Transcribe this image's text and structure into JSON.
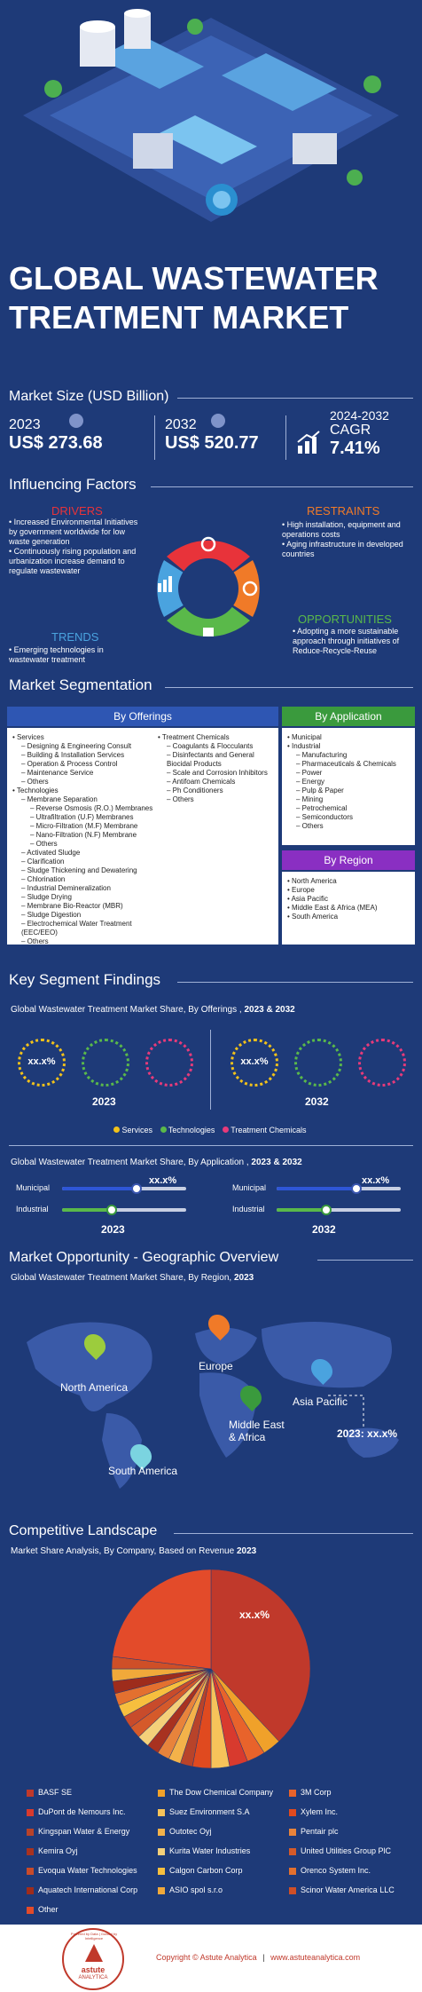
{
  "header": {
    "title_line1": "GLOBAL WASTEWATER",
    "title_line2": "TREATMENT MARKET"
  },
  "market_size": {
    "label": "Market Size (USD Billion)",
    "y1_year": "2023",
    "y1_value": "US$ 273.68",
    "y2_year": "2032",
    "y2_value": "US$ 520.77",
    "cagr_period": "2024-2032",
    "cagr_label": "CAGR",
    "cagr_value": "7.41%"
  },
  "factors": {
    "title": "Influencing Factors",
    "drivers_title": "DRIVERS",
    "drivers": [
      "Increased Environmental Initiatives by government worldwide for low waste generation",
      "Continuously rising population and urbanization increase demand to regulate wastewater"
    ],
    "restraints_title": "RESTRAINTS",
    "restraints": [
      "High installation, equipment and operations costs",
      "Aging infrastructure in developed countries"
    ],
    "trends_title": "TRENDS",
    "trends": [
      "Emerging technologies in wastewater treatment"
    ],
    "opportunities_title": "OPPORTUNITIES",
    "opportunities": [
      "Adopting a more sustainable approach through initiatives of Reduce-Recycle-Reuse"
    ],
    "colors": {
      "drivers": "#e8333a",
      "restraints": "#f07a28",
      "trends": "#4aa3df",
      "opportunities": "#5ab94a"
    }
  },
  "segmentation": {
    "title": "Market Segmentation",
    "offerings_title": "By Offerings",
    "application_title": "By Application",
    "region_title": "By Region",
    "offerings_col1": [
      {
        "t": "Services",
        "l": 0
      },
      {
        "t": "Designing & Engineering Consult",
        "l": 1
      },
      {
        "t": "Building & Installation Services",
        "l": 1
      },
      {
        "t": "Operation & Process Control",
        "l": 1
      },
      {
        "t": "Maintenance Service",
        "l": 1
      },
      {
        "t": "Others",
        "l": 1
      },
      {
        "t": "Technologies",
        "l": 0
      },
      {
        "t": "Membrane Separation",
        "l": 1
      },
      {
        "t": "Reverse Osmosis (R.O.) Membranes",
        "l": 2
      },
      {
        "t": "Ultrafiltration (U.F) Membranes",
        "l": 2
      },
      {
        "t": "Micro-Filtration (M.F) Membrane",
        "l": 2
      },
      {
        "t": "Nano-Filtration (N.F) Membrane",
        "l": 2
      },
      {
        "t": "Others",
        "l": 2
      },
      {
        "t": "Activated Sludge",
        "l": 1
      },
      {
        "t": "Clarification",
        "l": 1
      },
      {
        "t": "Sludge Thickening and Dewatering",
        "l": 1
      },
      {
        "t": "Chlorination",
        "l": 1
      },
      {
        "t": "Industrial Demineralization",
        "l": 1
      },
      {
        "t": "Sludge Drying",
        "l": 1
      },
      {
        "t": "Membrane Bio-Reactor (MBR)",
        "l": 1
      },
      {
        "t": "Sludge Digestion",
        "l": 1
      },
      {
        "t": "Electrochemical Water Treatment (EEC/EEO)",
        "l": 1
      },
      {
        "t": "Others",
        "l": 1
      }
    ],
    "offerings_col2": [
      {
        "t": "Treatment Chemicals",
        "l": 0
      },
      {
        "t": "Coagulants & Flocculants",
        "l": 1
      },
      {
        "t": "Disinfectants and General Biocidal Products",
        "l": 1
      },
      {
        "t": "Scale and Corrosion Inhibitors",
        "l": 1
      },
      {
        "t": "Antifoam Chemicals",
        "l": 1
      },
      {
        "t": "Ph Conditioners",
        "l": 1
      },
      {
        "t": "Others",
        "l": 1
      }
    ],
    "application": [
      {
        "t": "Municipal",
        "l": 0
      },
      {
        "t": "Industrial",
        "l": 0
      },
      {
        "t": "Manufacturing",
        "l": 1
      },
      {
        "t": "Pharmaceuticals & Chemicals",
        "l": 1
      },
      {
        "t": "Power",
        "l": 1
      },
      {
        "t": "Energy",
        "l": 1
      },
      {
        "t": "Pulp & Paper",
        "l": 1
      },
      {
        "t": "Mining",
        "l": 1
      },
      {
        "t": "Petrochemical",
        "l": 1
      },
      {
        "t": "Semiconductors",
        "l": 1
      },
      {
        "t": "Others",
        "l": 1
      }
    ],
    "region": [
      "North America",
      "Europe",
      "Asia Pacific",
      "Middle East & Africa (MEA)",
      "South America"
    ]
  },
  "findings": {
    "title": "Key Segment Findings",
    "offerings_caption": "Global Wastewater Treatment Market Share, By Offerings ,",
    "offerings_years": "2023 & 2032",
    "ring_value": "xx.x%",
    "year_a": "2023",
    "year_b": "2032",
    "legend": [
      "Services",
      "Technologies",
      "Treatment Chemicals"
    ],
    "legend_colors": [
      "#f2c21a",
      "#5ab94a",
      "#e83a7a"
    ],
    "application_caption": "Global Wastewater Treatment Market Share, By Application ,",
    "application_years": "2023 & 2032",
    "municipal": "Municipal",
    "industrial": "Industrial",
    "slider_value": "xx.x%"
  },
  "geo": {
    "title": "Market Opportunity - Geographic Overview",
    "caption": "Global Wastewater Treatment Market Share, By Region,",
    "year": "2023",
    "regions": [
      "North America",
      "Europe",
      "Middle East & Africa",
      "Asia Pacific",
      "South America"
    ],
    "callout_year": "2023",
    "callout_value": ": xx.x%"
  },
  "competitive": {
    "title": "Competitive Landscape",
    "caption": "Market Share Analysis, By Company, Based on Revenue",
    "year": "2023",
    "pie_label": "xx.x%",
    "companies": [
      {
        "name": "BASF SE",
        "color": "#c0392b"
      },
      {
        "name": "The Dow Chemical Company",
        "color": "#f0a12a"
      },
      {
        "name": "3M Corp",
        "color": "#e8632b"
      },
      {
        "name": "DuPont de Nemours Inc.",
        "color": "#d83a2e"
      },
      {
        "name": "Suez Environment S.A",
        "color": "#f6c35a"
      },
      {
        "name": "Xylem Inc.",
        "color": "#e04a1f"
      },
      {
        "name": "Kingspan Water & Energy",
        "color": "#b8432a"
      },
      {
        "name": "Outotec Oyj",
        "color": "#f3b24a"
      },
      {
        "name": "Pentair plc",
        "color": "#e8833b"
      },
      {
        "name": "Kemira Oyj",
        "color": "#a83220"
      },
      {
        "name": "Kurita Water Industries",
        "color": "#f4d07a"
      },
      {
        "name": "United Utilities Group PlC",
        "color": "#d55a2a"
      },
      {
        "name": "Evoqua Water Technologies",
        "color": "#c84b2b"
      },
      {
        "name": "Calgon Carbon Corp",
        "color": "#f7bf3e"
      },
      {
        "name": "Orenco System Inc.",
        "color": "#e3702f"
      },
      {
        "name": "Aquatech International Corp",
        "color": "#9e2c1c"
      },
      {
        "name": "ASIO spol s.r.o",
        "color": "#f1a93a"
      },
      {
        "name": "Scinor Water America LLC",
        "color": "#cf4f27"
      },
      {
        "name": "Other",
        "color": "#e34b2a"
      }
    ]
  },
  "footer": {
    "logo_ring": "Powered by Data | Guided by Intelligence",
    "logo_name1": "astute",
    "logo_name2": "ANALYTICA",
    "copyright": "Copyright © Astute Analytica",
    "site": "www.astuteanalytica.com"
  }
}
